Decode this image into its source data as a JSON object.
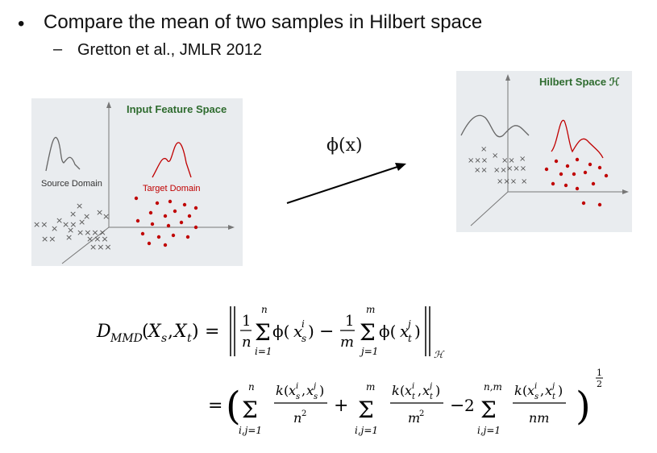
{
  "bullet": {
    "symbol": "•",
    "text": "Compare the mean of two samples in Hilbert space"
  },
  "sub_bullet": {
    "symbol": "–",
    "text": "Gretton et al., JMLR 2012"
  },
  "left_figure": {
    "title": "Input Feature Space",
    "source_label": "Source Domain",
    "target_label": "Target Domain"
  },
  "right_figure": {
    "title": "Hilbert Space ℋ"
  },
  "mapping_label": "ϕ(x)",
  "colors": {
    "title_green": "#2e6b2e",
    "target_red": "#c00000",
    "source_cross": "#555555",
    "panel_bg": "#e9ecef"
  },
  "formula": {
    "lhs": "D_MMD(X_s, X_t)",
    "line1": "= || 1/n Σ_{i=1}^{n} φ(x_s^i) − 1/m Σ_{j=1}^{m} φ(x_t^j) ||_H",
    "line2": "= ( Σ_{i,j=1}^{n} k(x_s^i,x_s^j)/n^2 + Σ_{i,j=1}^{m} k(x_t^i,x_t^j)/m^2 − 2 Σ_{i,j=1}^{n,m} k(x_s^i,x_t^j)/(nm) )^{1/2}"
  }
}
